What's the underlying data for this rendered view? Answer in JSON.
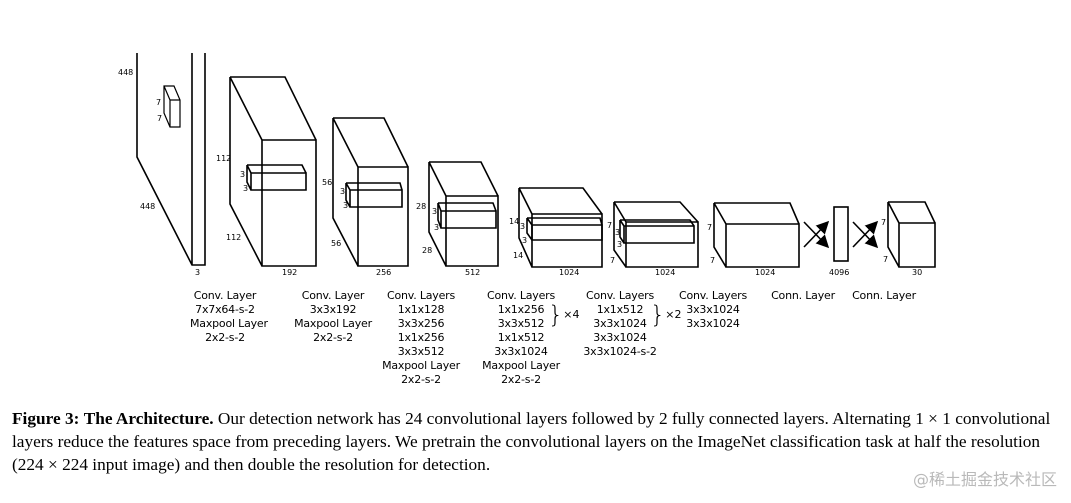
{
  "diagram": {
    "input": {
      "height": "448",
      "width": "448",
      "depth": "3",
      "kernel": [
        "7",
        "7"
      ]
    },
    "blocks": [
      {
        "h": "112",
        "w": "112",
        "depth": "192",
        "kernel": [
          "3",
          "3"
        ]
      },
      {
        "h": "56",
        "w": "56",
        "depth": "256",
        "kernel": [
          "3",
          "3"
        ]
      },
      {
        "h": "28",
        "w": "28",
        "depth": "512",
        "kernel": [
          "3",
          "3"
        ]
      },
      {
        "h": "14",
        "w": "14",
        "depth": "1024",
        "kernel": [
          "3",
          "3"
        ]
      },
      {
        "h": "7",
        "w": "7",
        "depth": "1024",
        "kernel": [
          "3",
          "3"
        ]
      },
      {
        "h": "7",
        "w": "7",
        "depth": "1024"
      },
      {
        "depth": "4096"
      },
      {
        "h": "7",
        "w": "7",
        "depth": "30"
      }
    ],
    "layer_columns": [
      {
        "lines": [
          "Conv. Layer",
          "7x7x64-s-2",
          "Maxpool Layer",
          "2x2-s-2"
        ]
      },
      {
        "lines": [
          "Conv. Layer",
          "3x3x192",
          "Maxpool Layer",
          "2x2-s-2"
        ]
      },
      {
        "lines": [
          "Conv. Layers",
          "1x1x128",
          "3x3x256",
          "1x1x256",
          "3x3x512",
          "Maxpool Layer",
          "2x2-s-2"
        ]
      },
      {
        "lines": [
          "Conv. Layers",
          "1x1x256",
          "3x3x512",
          "1x1x512",
          "3x3x1024",
          "Maxpool Layer",
          "2x2-s-2"
        ],
        "repeat": "×4"
      },
      {
        "lines": [
          "Conv. Layers",
          "1x1x512",
          "3x3x1024",
          "3x3x1024",
          "3x3x1024-s-2"
        ],
        "repeat": "×2"
      },
      {
        "lines": [
          "Conv. Layers",
          "3x3x1024",
          "3x3x1024"
        ]
      },
      {
        "lines": [
          "Conn. Layer"
        ]
      },
      {
        "lines": [
          "Conn. Layer"
        ]
      }
    ]
  },
  "caption": {
    "label": "Figure 3:",
    "title": "The Architecture.",
    "text": "Our detection network has 24 convolutional layers followed by 2 fully connected layers. Alternating 1 × 1 convolutional layers reduce the features space from preceding layers. We pretrain the convolutional layers on the ImageNet classification task at half the resolution (224 × 224 input image) and then double the resolution for detection."
  },
  "watermark": "@稀土掘金技术社区"
}
